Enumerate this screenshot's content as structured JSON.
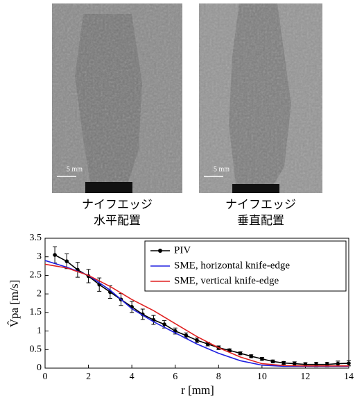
{
  "images": [
    {
      "scale_label": "5 mm",
      "caption": [
        "ナイフエッジ",
        "水平配置"
      ]
    },
    {
      "scale_label": "5 mm",
      "caption": [
        "ナイフエッジ",
        "垂直配置"
      ]
    }
  ],
  "chart_data": {
    "type": "line",
    "xlabel": "r [mm]",
    "ylabel": "V̂pa [m/s]",
    "xlim": [
      0,
      14
    ],
    "xticks": [
      0,
      2,
      4,
      6,
      8,
      10,
      12,
      14
    ],
    "ylim": [
      0,
      3.5
    ],
    "yticks": [
      0,
      0.5,
      1,
      1.5,
      2,
      2.5,
      3,
      3.5
    ],
    "legend": "upper right",
    "series": [
      {
        "name": "PIV",
        "color": "#000000",
        "marker": true,
        "x": [
          0.45,
          1,
          1.5,
          2,
          2.5,
          3,
          3.5,
          4,
          4.5,
          5,
          5.5,
          6,
          6.5,
          7,
          7.5,
          8,
          8.5,
          9,
          9.5,
          10,
          10.5,
          11,
          11.5,
          12,
          12.5,
          13,
          13.5,
          14
        ],
        "values": [
          3.05,
          2.88,
          2.65,
          2.48,
          2.25,
          2.05,
          1.85,
          1.65,
          1.45,
          1.3,
          1.18,
          1.0,
          0.88,
          0.75,
          0.65,
          0.55,
          0.48,
          0.4,
          0.32,
          0.25,
          0.18,
          0.14,
          0.12,
          0.1,
          0.1,
          0.1,
          0.12,
          0.13
        ],
        "errors": [
          0.22,
          0.2,
          0.2,
          0.18,
          0.18,
          0.17,
          0.16,
          0.15,
          0.14,
          0.12,
          0.1,
          0.08,
          0.07,
          0.06,
          0.05,
          0.05,
          0.04,
          0.04,
          0.04,
          0.04,
          0.04,
          0.04,
          0.05,
          0.05,
          0.06,
          0.06,
          0.07,
          0.07
        ]
      },
      {
        "name": "SME, horizontal knife-edge",
        "color": "#2020e0",
        "marker": false,
        "x": [
          0,
          1,
          2,
          3,
          4,
          5,
          6,
          7,
          8,
          9,
          10,
          11,
          12,
          13,
          14
        ],
        "values": [
          2.9,
          2.72,
          2.5,
          2.1,
          1.6,
          1.25,
          0.95,
          0.65,
          0.4,
          0.2,
          0.08,
          0.05,
          0.05,
          0.05,
          0.05
        ]
      },
      {
        "name": "SME, vertical knife-edge",
        "color": "#e02020",
        "marker": false,
        "x": [
          0,
          1,
          2,
          3,
          4,
          5,
          6,
          7,
          8,
          9,
          10,
          11,
          12,
          13,
          14
        ],
        "values": [
          2.8,
          2.7,
          2.5,
          2.2,
          1.85,
          1.55,
          1.2,
          0.85,
          0.55,
          0.3,
          0.12,
          0.07,
          0.06,
          0.06,
          0.06
        ]
      }
    ]
  }
}
